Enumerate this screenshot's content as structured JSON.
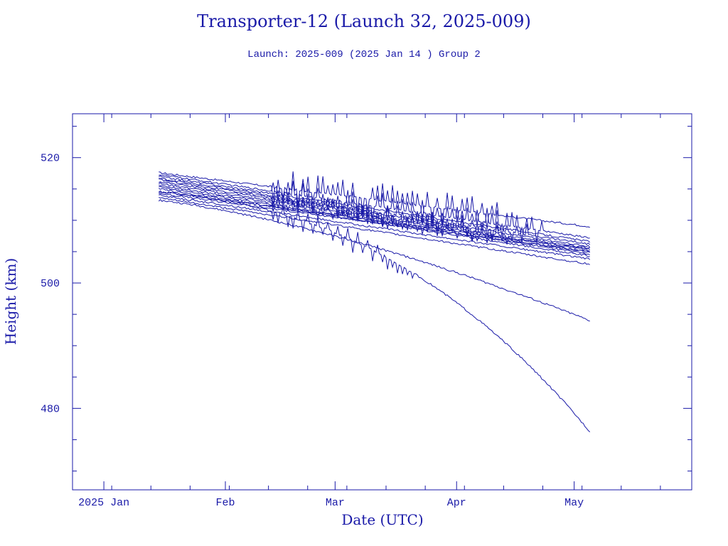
{
  "chart_data": {
    "type": "line",
    "title": "Transporter-12 (Launch 32, 2025-009)",
    "subtitle": "Launch: 2025-009  (2025 Jan 14 )  Group 2",
    "xlabel": "Date (UTC)",
    "ylabel": "Height (km)",
    "x_ticks": [
      {
        "date": "2025-01-01",
        "label": "2025 Jan"
      },
      {
        "date": "2025-02-01",
        "label": "Feb"
      },
      {
        "date": "2025-03-01",
        "label": "Mar"
      },
      {
        "date": "2025-04-01",
        "label": "Apr"
      },
      {
        "date": "2025-05-01",
        "label": "May"
      }
    ],
    "y_ticks": [
      480,
      500,
      520
    ],
    "xlim": [
      "2024-12-24",
      "2025-05-31"
    ],
    "ylim": [
      467,
      527
    ],
    "color": "#1a1aa8",
    "series": [
      {
        "start": 517.6,
        "end": 509.0,
        "noise": 1.4,
        "spike_end": "2025-04-12",
        "decay": null
      },
      {
        "start": 517.3,
        "end": 507.2,
        "noise": 1.2,
        "spike_end": "2025-04-24",
        "decay": null
      },
      {
        "start": 517.0,
        "end": 506.6,
        "noise": 1.0,
        "spike_end": null,
        "decay": null
      },
      {
        "start": 516.7,
        "end": 506.2,
        "noise": 0.8,
        "spike_end": "2025-04-20",
        "decay": null
      },
      {
        "start": 516.5,
        "end": 505.8,
        "noise": 0.6,
        "spike_end": null,
        "decay": null
      },
      {
        "start": 516.2,
        "end": 505.5,
        "noise": 0.9,
        "spike_end": "2025-04-14",
        "decay": null
      },
      {
        "start": 515.9,
        "end": 505.2,
        "noise": 0.5,
        "spike_end": null,
        "decay": null
      },
      {
        "start": 515.6,
        "end": 504.9,
        "noise": 0.7,
        "spike_end": "2025-04-08",
        "decay": null
      },
      {
        "start": 515.3,
        "end": 504.6,
        "noise": 0.4,
        "spike_end": null,
        "decay": null
      },
      {
        "start": 515.0,
        "end": 504.3,
        "noise": 0.5,
        "spike_end": null,
        "decay": null
      },
      {
        "start": 514.6,
        "end": 505.4,
        "noise": 0.3,
        "spike_end": null,
        "decay": null
      },
      {
        "start": 514.3,
        "end": 505.0,
        "noise": 0.3,
        "spike_end": null,
        "decay": null
      },
      {
        "start": 514.0,
        "end": 503.8,
        "noise": 0.4,
        "spike_end": null,
        "decay": null
      },
      {
        "start": 513.6,
        "end": 503.0,
        "noise": 0.3,
        "spike_end": null,
        "decay": null
      },
      {
        "start": 513.2,
        "end": 494.0,
        "noise": 0.4,
        "spike_end": null,
        "decay": "slow"
      },
      {
        "start": 514.5,
        "end": 476.3,
        "noise": 1.0,
        "spike_end": "2025-03-22",
        "decay": "fast"
      }
    ],
    "series_start_date": "2025-01-15",
    "series_end_date": "2025-05-05"
  }
}
